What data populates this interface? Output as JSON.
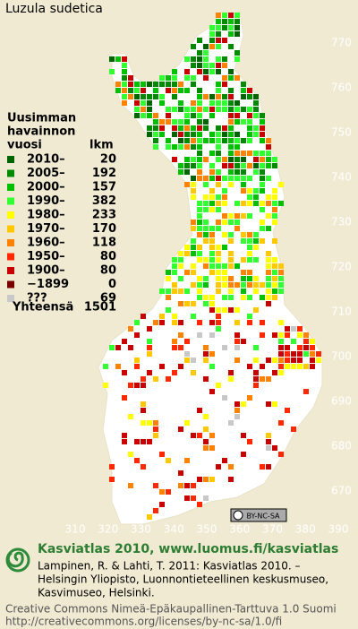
{
  "title": "Luzula sudetica",
  "legend": {
    "heading": [
      "Uusimman",
      "havainnon",
      "vuosi"
    ],
    "count_heading": "lkm",
    "items": [
      {
        "label": "2010–",
        "count": 20,
        "color": "#006400"
      },
      {
        "label": "2005–",
        "count": 192,
        "color": "#008a00"
      },
      {
        "label": "2000–",
        "count": 157,
        "color": "#00c000"
      },
      {
        "label": "1990–",
        "count": 382,
        "color": "#32ff32"
      },
      {
        "label": "1980–",
        "count": 233,
        "color": "#ffff00"
      },
      {
        "label": "1970–",
        "count": 170,
        "color": "#ffc800"
      },
      {
        "label": "1960–",
        "count": 118,
        "color": "#ff8200"
      },
      {
        "label": "1950–",
        "count": 80,
        "color": "#ff2800"
      },
      {
        "label": "1900–",
        "count": 80,
        "color": "#c80000"
      },
      {
        "label": "−1899",
        "count": 0,
        "color": "#780000"
      },
      {
        "label": "???",
        "count": 69,
        "color": "#c8c8c8"
      }
    ],
    "total_label": "Yhteensä",
    "total": 1501
  },
  "axes": {
    "x_ticks": [
      310,
      320,
      330,
      340,
      350,
      360,
      370,
      380,
      390
    ],
    "y_ticks": [
      670,
      680,
      690,
      700,
      710,
      720,
      730,
      740,
      750,
      760,
      770
    ]
  },
  "license_badge": "BY-NC-SA",
  "footer": {
    "site": "Kasviatlas 2010, www.luomus.fi/kasviatlas",
    "citation": [
      "Lampinen, R. & Lahti, T. 2011: Kasviatlas 2010. –",
      "Helsingin Yliopisto, Luonnontieteellinen keskusmuseo,",
      "Kasvimuseo, Helsinki."
    ],
    "license": [
      "Creative Commons Nimeä-Epäkaupallinen-Tarttuva 1.0 Suomi",
      "http://creativecommons.org/licenses/by-nc-sa/1.0/fi"
    ]
  }
}
